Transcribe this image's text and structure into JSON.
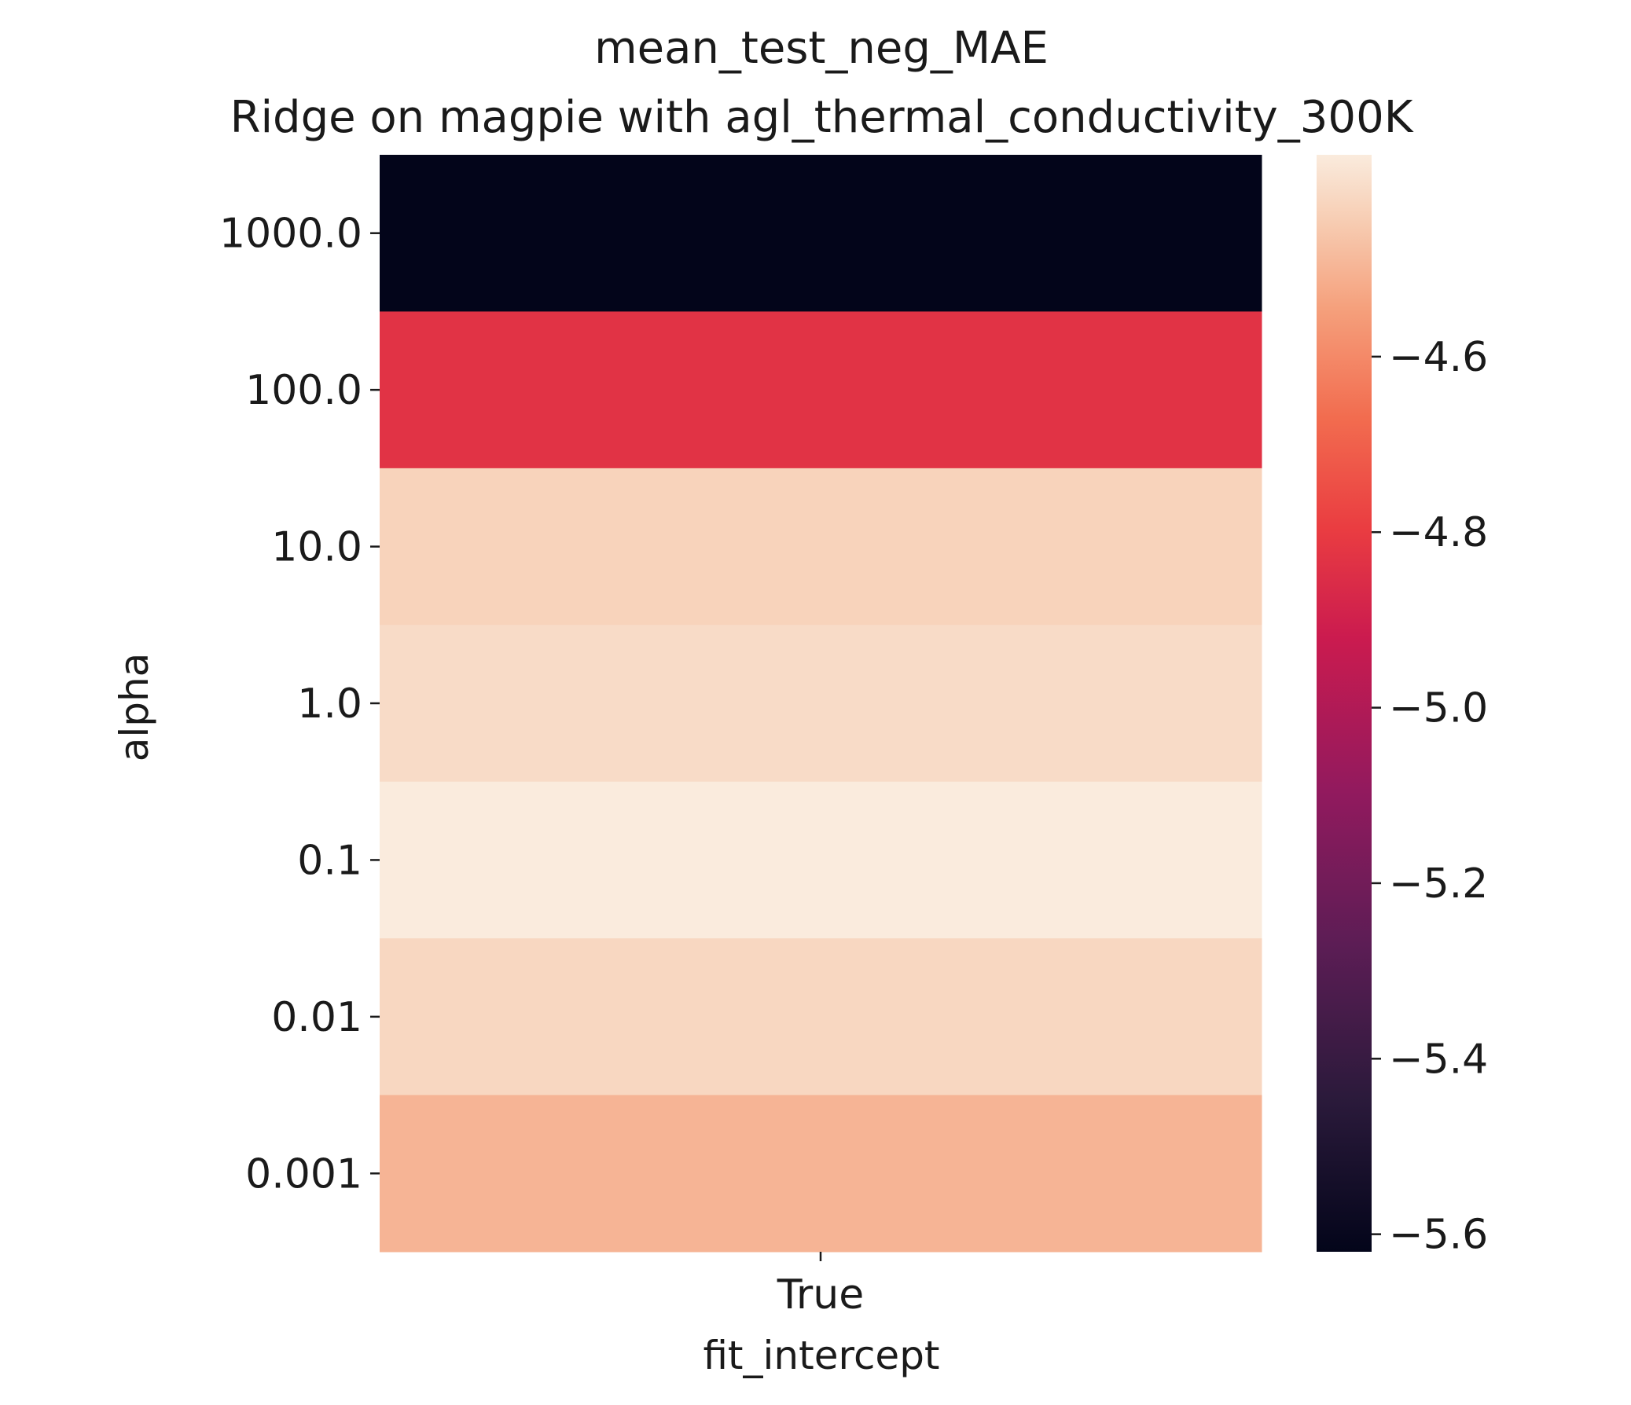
{
  "chart_data": {
    "type": "heatmap",
    "title": "mean_test_neg_MAE",
    "subtitle": "Ridge on magpie with agl_thermal_conductivity_300K",
    "xlabel": "fit_intercept",
    "ylabel": "alpha",
    "x_categories": [
      "True"
    ],
    "y_categories": [
      "1000.0",
      "100.0",
      "10.0",
      "1.0",
      "0.1",
      "0.01",
      "0.001"
    ],
    "values": [
      [
        -5.62
      ],
      [
        -4.83
      ],
      [
        -4.43
      ],
      [
        -4.41
      ],
      [
        -4.37
      ],
      [
        -4.42
      ],
      [
        -4.5
      ]
    ],
    "colorbar": {
      "vmin": -5.62,
      "vmax": -4.37,
      "ticks": [
        -4.6,
        -4.8,
        -5.0,
        -5.2,
        -5.4,
        -5.6
      ],
      "tick_labels": [
        "−4.6",
        "−4.8",
        "−5.0",
        "−5.2",
        "−5.4",
        "−5.6"
      ],
      "colormap": "rocket"
    },
    "grid": false
  }
}
